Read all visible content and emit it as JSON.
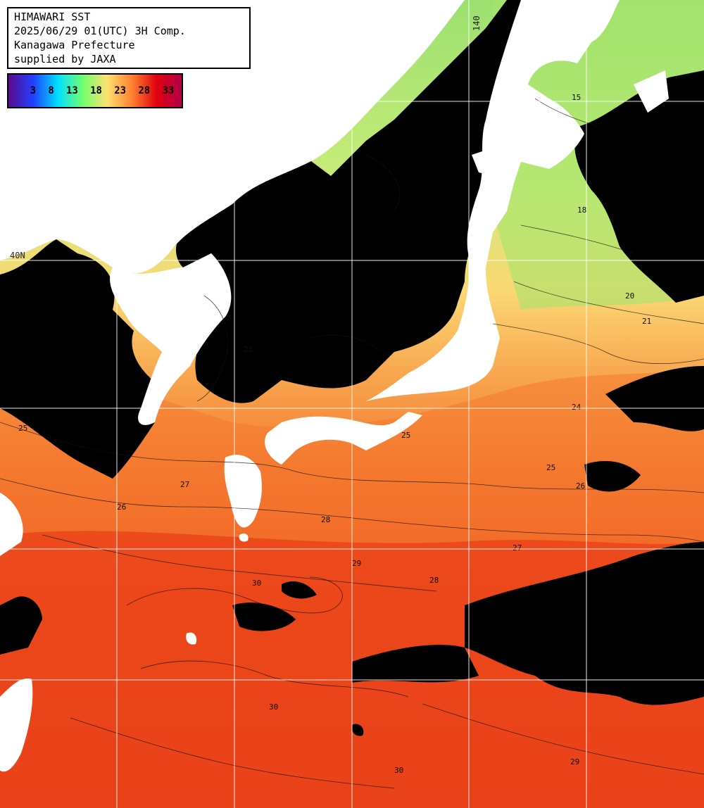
{
  "info": {
    "title": "HIMAWARI SST",
    "datetime": "2025/06/29 01(UTC) 3H Comp.",
    "region": "Kanagawa Prefecture",
    "credit": "supplied by JAXA"
  },
  "legend": {
    "ticks": [
      "3",
      "8",
      "13",
      "18",
      "23",
      "28",
      "33"
    ],
    "colors": [
      "#5a0a8c",
      "#2040ff",
      "#00e0ff",
      "#70ff70",
      "#ffe070",
      "#ff8030",
      "#e00010",
      "#b0004a"
    ]
  },
  "grid_labels": {
    "lat": "40N",
    "lon": "140"
  },
  "contour_labels": [
    "15",
    "18",
    "20",
    "21",
    "23",
    "24",
    "25",
    "26",
    "27",
    "28",
    "29",
    "30"
  ],
  "colors": {
    "cloud": "#000000",
    "land": "#ffffff",
    "cold_water": "#8ee06a",
    "mid_water": "#f8d070",
    "warm_water": "#f4782a",
    "hot_water": "#e42810"
  }
}
